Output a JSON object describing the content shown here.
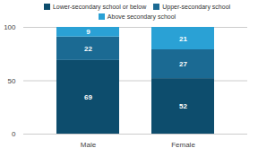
{
  "chart_data": {
    "type": "bar",
    "stacked": true,
    "data_labels": true,
    "grid": true,
    "legend": "top",
    "categories": [
      "Male",
      "Female"
    ],
    "series": [
      {
        "name": "Lower-secondary school or below",
        "color": "#0d4d6d",
        "values": [
          69,
          52
        ]
      },
      {
        "name": "Upper-secondary school",
        "color": "#1b6a93",
        "values": [
          22,
          27
        ]
      },
      {
        "name": "Above secondary school",
        "color": "#2aa1d5",
        "values": [
          9,
          21
        ]
      }
    ],
    "ylim": [
      0,
      100
    ],
    "yticks": [
      0,
      50,
      100
    ]
  }
}
